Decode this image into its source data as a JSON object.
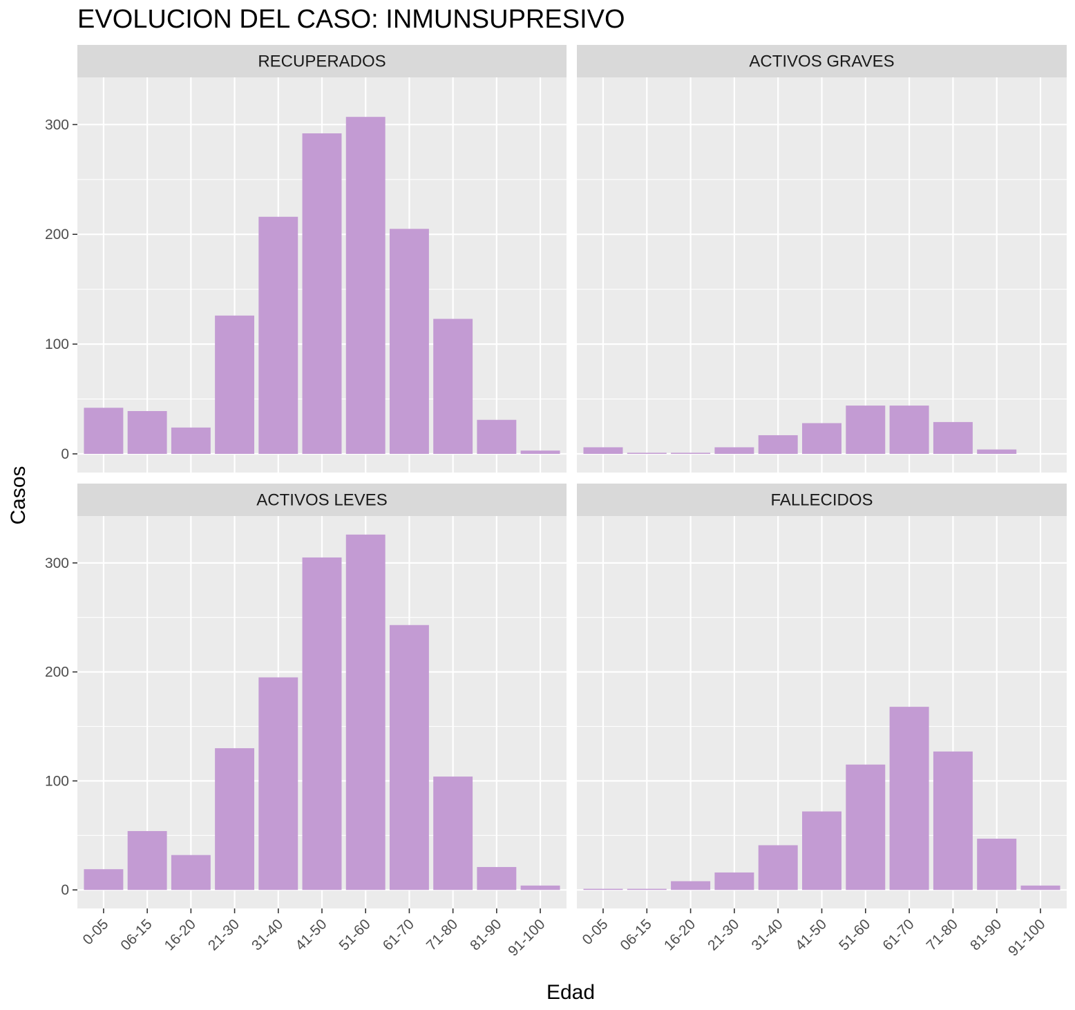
{
  "chart_data": {
    "type": "bar",
    "title": "EVOLUCION DEL CASO: INMUNSUPRESIVO",
    "xlabel": "Edad",
    "ylabel": "Casos",
    "categories": [
      "0-05",
      "06-15",
      "16-20",
      "21-30",
      "31-40",
      "41-50",
      "51-60",
      "61-70",
      "71-80",
      "81-90",
      "91-100"
    ],
    "ylim": [
      -17,
      343
    ],
    "yticks": [
      0,
      100,
      200,
      300
    ],
    "grid": true,
    "bar_color": "#C39BD3",
    "panel_background": "#EBEBEB",
    "strip_background": "#D9D9D9",
    "panels": [
      {
        "name": "RECUPERADOS",
        "values": [
          42,
          39,
          24,
          126,
          216,
          292,
          307,
          205,
          123,
          31,
          3
        ]
      },
      {
        "name": "ACTIVOS GRAVES",
        "values": [
          6,
          1,
          1,
          6,
          17,
          28,
          44,
          44,
          29,
          4,
          0
        ]
      },
      {
        "name": "ACTIVOS LEVES",
        "values": [
          19,
          54,
          32,
          130,
          195,
          305,
          326,
          243,
          104,
          21,
          4
        ]
      },
      {
        "name": "FALLECIDOS",
        "values": [
          1,
          1,
          8,
          16,
          41,
          72,
          115,
          168,
          127,
          47,
          4
        ]
      }
    ]
  }
}
